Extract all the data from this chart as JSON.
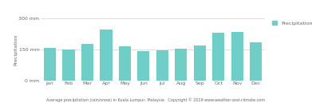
{
  "months": [
    "Jan",
    "Feb",
    "Mar",
    "Apr",
    "May",
    "Jun",
    "Jul",
    "Aug",
    "Sep",
    "Oct",
    "Nov",
    "Dec"
  ],
  "precipitation": [
    158,
    150,
    178,
    248,
    165,
    143,
    144,
    152,
    168,
    232,
    234,
    183
  ],
  "bar_color": "#6DCFC8",
  "ylim": [
    0,
    300
  ],
  "ytick_labels": [
    "0 mm",
    "150 mm",
    "300 mm"
  ],
  "ytick_values": [
    0,
    150,
    300
  ],
  "ylabel": "Precipitation",
  "xlabel_bottom": "Average precipitation (rain/snow) in Kuala Lumpur, Malaysia   Copyright © 2019 www.weather-and-climate.com",
  "legend_label": "Precipitation",
  "legend_color": "#6DCFC8",
  "grid_color": "#d0d0d0",
  "background_color": "#ffffff",
  "axis_label_color": "#666666",
  "tick_label_color": "#666666"
}
